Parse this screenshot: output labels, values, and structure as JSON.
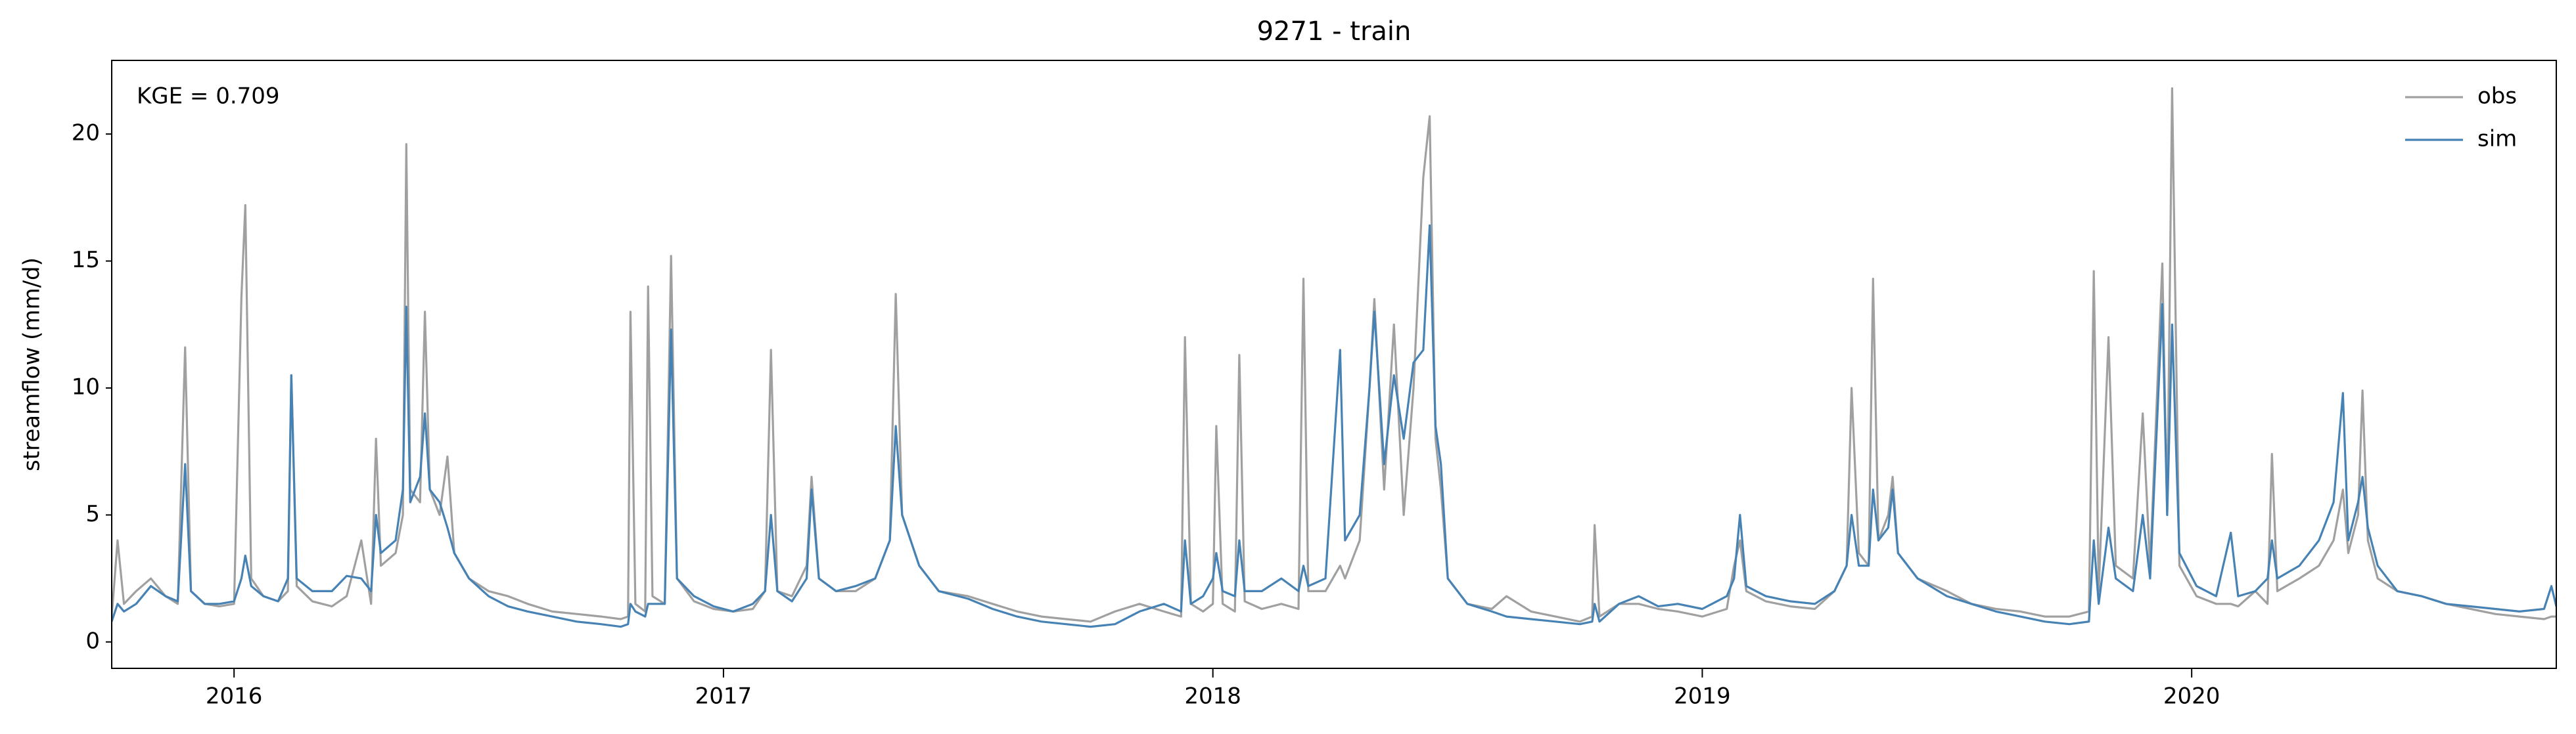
{
  "chart_data": {
    "type": "line",
    "title": "9271 - train",
    "ylabel": "streamflow (mm/d)",
    "annotation": "KGE = 0.709",
    "legend": "upper right",
    "grid": false,
    "xlim": [
      2015.75,
      2020.745
    ],
    "xticks": [
      2016,
      2017,
      2018,
      2019,
      2020
    ],
    "ylim": [
      -1.04,
      22.9
    ],
    "yticks": [
      0,
      5,
      10,
      15,
      20
    ],
    "x": [
      2015.75,
      2015.762,
      2015.775,
      2015.8,
      2015.83,
      2015.86,
      2015.885,
      2015.9,
      2015.912,
      2015.94,
      2015.97,
      2016.0,
      2016.015,
      2016.023,
      2016.035,
      2016.06,
      2016.09,
      2016.11,
      2016.117,
      2016.128,
      2016.16,
      2016.2,
      2016.23,
      2016.26,
      2016.28,
      2016.29,
      2016.3,
      2016.33,
      2016.345,
      2016.352,
      2016.36,
      2016.38,
      2016.39,
      2016.4,
      2016.42,
      2016.436,
      2016.45,
      2016.48,
      2016.52,
      2016.56,
      2016.6,
      2016.65,
      2016.7,
      2016.75,
      2016.79,
      2016.805,
      2016.81,
      2016.82,
      2016.84,
      2016.846,
      2016.855,
      2016.88,
      2016.893,
      2016.905,
      2016.94,
      2016.98,
      2017.02,
      2017.06,
      2017.085,
      2017.097,
      2017.11,
      2017.14,
      2017.17,
      2017.18,
      2017.195,
      2017.23,
      2017.27,
      2017.31,
      2017.34,
      2017.352,
      2017.365,
      2017.4,
      2017.44,
      2017.5,
      2017.55,
      2017.6,
      2017.65,
      2017.7,
      2017.75,
      2017.8,
      2017.85,
      2017.9,
      2017.935,
      2017.943,
      2017.955,
      2017.98,
      2018.0,
      2018.007,
      2018.02,
      2018.045,
      2018.054,
      2018.065,
      2018.1,
      2018.14,
      2018.175,
      2018.185,
      2018.195,
      2018.23,
      2018.26,
      2018.27,
      2018.3,
      2018.32,
      2018.33,
      2018.35,
      2018.37,
      2018.39,
      2018.41,
      2018.43,
      2018.443,
      2018.455,
      2018.466,
      2018.48,
      2018.52,
      2018.57,
      2018.6,
      2018.65,
      2018.7,
      2018.75,
      2018.775,
      2018.78,
      2018.79,
      2018.83,
      2018.87,
      2018.91,
      2018.95,
      2019.0,
      2019.05,
      2019.065,
      2019.077,
      2019.09,
      2019.13,
      2019.18,
      2019.23,
      2019.27,
      2019.295,
      2019.305,
      2019.32,
      2019.34,
      2019.349,
      2019.36,
      2019.38,
      2019.389,
      2019.4,
      2019.44,
      2019.5,
      2019.55,
      2019.6,
      2019.65,
      2019.7,
      2019.75,
      2019.79,
      2019.8,
      2019.81,
      2019.83,
      2019.845,
      2019.88,
      2019.9,
      2019.915,
      2019.94,
      2019.95,
      2019.96,
      2019.975,
      2020.01,
      2020.05,
      2020.08,
      2020.095,
      2020.13,
      2020.155,
      2020.164,
      2020.175,
      2020.22,
      2020.26,
      2020.29,
      2020.309,
      2020.32,
      2020.34,
      2020.349,
      2020.36,
      2020.38,
      2020.42,
      2020.47,
      2020.52,
      2020.57,
      2020.62,
      2020.67,
      2020.72,
      2020.735,
      2020.745
    ],
    "series": [
      {
        "name": "obs",
        "color": "#a0a0a0",
        "values": [
          1.0,
          4.0,
          1.5,
          2.0,
          2.5,
          1.8,
          1.5,
          11.6,
          2.0,
          1.5,
          1.4,
          1.5,
          13.6,
          17.2,
          2.5,
          1.8,
          1.6,
          2.0,
          10.5,
          2.2,
          1.6,
          1.4,
          1.8,
          4.0,
          1.5,
          8.0,
          3.0,
          3.5,
          5.0,
          19.6,
          6.0,
          5.5,
          13.0,
          6.0,
          5.0,
          7.3,
          3.5,
          2.5,
          2.0,
          1.8,
          1.5,
          1.2,
          1.1,
          1.0,
          0.9,
          1.0,
          13.0,
          1.5,
          1.2,
          14.0,
          1.8,
          1.5,
          15.2,
          2.5,
          1.6,
          1.3,
          1.2,
          1.3,
          2.0,
          11.5,
          2.0,
          1.8,
          3.0,
          6.5,
          2.5,
          2.0,
          2.0,
          2.5,
          4.0,
          13.7,
          5.0,
          3.0,
          2.0,
          1.8,
          1.5,
          1.2,
          1.0,
          0.9,
          0.8,
          1.2,
          1.5,
          1.2,
          1.0,
          12.0,
          1.5,
          1.2,
          1.5,
          8.5,
          1.5,
          1.2,
          11.3,
          1.6,
          1.3,
          1.5,
          1.3,
          14.3,
          2.0,
          2.0,
          3.0,
          2.5,
          4.0,
          10.0,
          13.5,
          6.0,
          12.5,
          5.0,
          10.0,
          18.3,
          20.7,
          8.0,
          6.0,
          2.5,
          1.5,
          1.3,
          1.8,
          1.2,
          1.0,
          0.8,
          1.0,
          4.6,
          1.0,
          1.5,
          1.5,
          1.3,
          1.2,
          1.0,
          1.3,
          3.0,
          4.0,
          2.0,
          1.6,
          1.4,
          1.3,
          2.0,
          3.0,
          10.0,
          3.5,
          3.0,
          14.3,
          4.0,
          5.0,
          6.5,
          3.5,
          2.5,
          2.0,
          1.5,
          1.3,
          1.2,
          1.0,
          1.0,
          1.2,
          14.6,
          2.0,
          12.0,
          3.0,
          2.5,
          9.0,
          3.0,
          14.9,
          5.0,
          21.8,
          3.0,
          1.8,
          1.5,
          1.5,
          1.4,
          2.0,
          1.5,
          7.4,
          2.0,
          2.5,
          3.0,
          4.0,
          6.0,
          3.5,
          5.0,
          9.9,
          4.0,
          2.5,
          2.0,
          1.8,
          1.5,
          1.3,
          1.1,
          1.0,
          0.9,
          1.0,
          1.0
        ]
      },
      {
        "name": "sim",
        "color": "#4682b4",
        "values": [
          0.8,
          1.5,
          1.2,
          1.5,
          2.2,
          1.8,
          1.6,
          7.0,
          2.0,
          1.5,
          1.5,
          1.6,
          2.5,
          3.4,
          2.2,
          1.8,
          1.6,
          2.5,
          10.5,
          2.5,
          2.0,
          2.0,
          2.6,
          2.5,
          2.0,
          5.0,
          3.5,
          4.0,
          6.0,
          13.2,
          5.5,
          6.5,
          9.0,
          6.0,
          5.5,
          4.5,
          3.5,
          2.5,
          1.8,
          1.4,
          1.2,
          1.0,
          0.8,
          0.7,
          0.6,
          0.7,
          1.5,
          1.2,
          1.0,
          1.5,
          1.5,
          1.5,
          12.3,
          2.5,
          1.8,
          1.4,
          1.2,
          1.5,
          2.0,
          5.0,
          2.0,
          1.6,
          2.5,
          6.0,
          2.5,
          2.0,
          2.2,
          2.5,
          4.0,
          8.5,
          5.0,
          3.0,
          2.0,
          1.7,
          1.3,
          1.0,
          0.8,
          0.7,
          0.6,
          0.7,
          1.2,
          1.5,
          1.2,
          4.0,
          1.5,
          1.8,
          2.5,
          3.5,
          2.0,
          1.8,
          4.0,
          2.0,
          2.0,
          2.5,
          2.0,
          3.0,
          2.2,
          2.5,
          11.5,
          4.0,
          5.0,
          10.0,
          13.0,
          7.0,
          10.5,
          8.0,
          11.0,
          11.5,
          16.4,
          8.5,
          7.0,
          2.5,
          1.5,
          1.2,
          1.0,
          0.9,
          0.8,
          0.7,
          0.8,
          1.5,
          0.8,
          1.5,
          1.8,
          1.4,
          1.5,
          1.3,
          1.8,
          2.5,
          5.0,
          2.2,
          1.8,
          1.6,
          1.5,
          2.0,
          3.0,
          5.0,
          3.0,
          3.0,
          6.0,
          4.0,
          4.5,
          6.0,
          3.5,
          2.5,
          1.8,
          1.5,
          1.2,
          1.0,
          0.8,
          0.7,
          0.8,
          4.0,
          1.5,
          4.5,
          2.5,
          2.0,
          5.0,
          2.5,
          13.3,
          5.0,
          12.5,
          3.5,
          2.2,
          1.8,
          4.3,
          1.8,
          2.0,
          2.5,
          4.0,
          2.5,
          3.0,
          4.0,
          5.5,
          9.8,
          4.0,
          5.5,
          6.5,
          4.5,
          3.0,
          2.0,
          1.8,
          1.5,
          1.4,
          1.3,
          1.2,
          1.3,
          2.2,
          1.4
        ]
      }
    ]
  }
}
